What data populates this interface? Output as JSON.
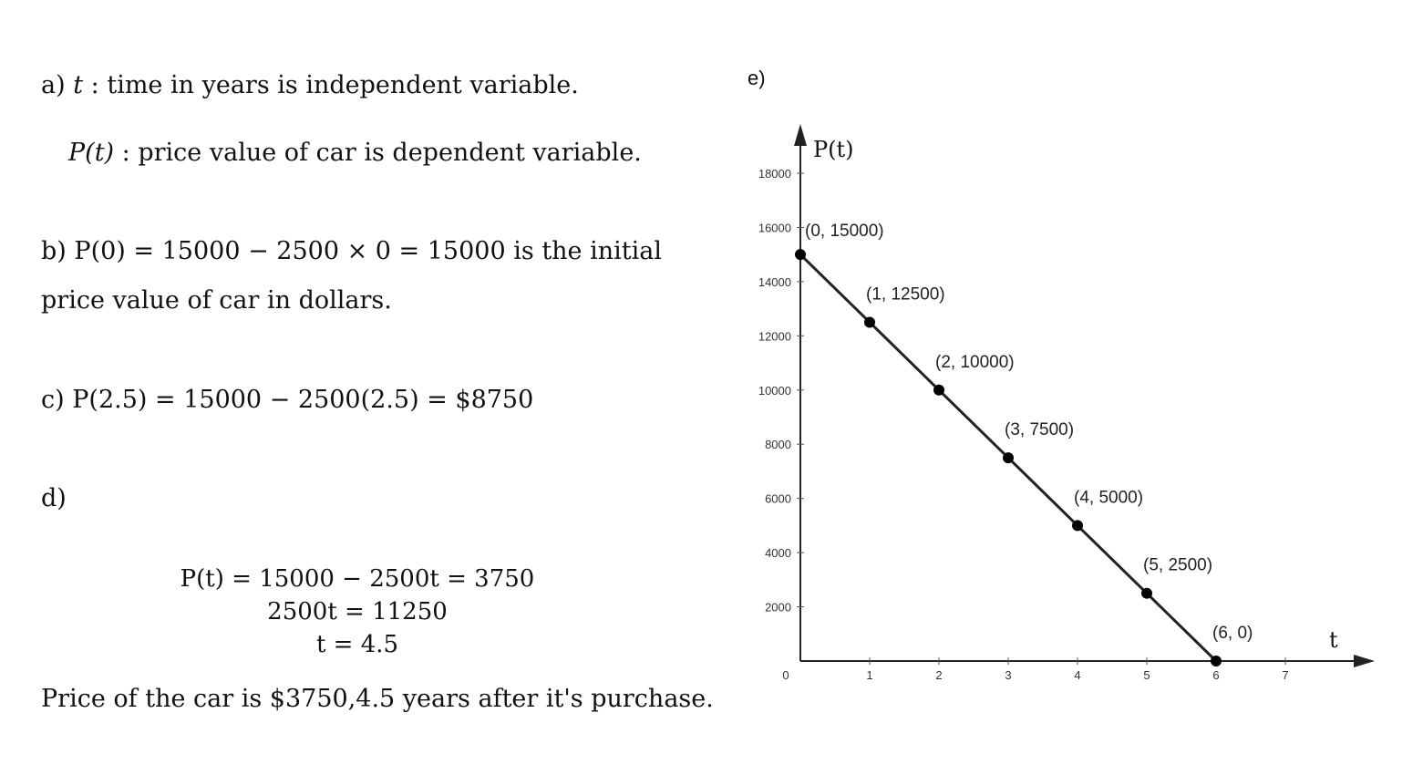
{
  "text": {
    "a_line1": {
      "prefix": "a) ",
      "var": "t",
      "rest": " : time in years is independent variable."
    },
    "a_line2": {
      "func": "P(t)",
      "rest": " : price value of car is dependent variable."
    },
    "b_line1": {
      "prefix": "b) ",
      "eq": "P(0) = 15000 − 2500 × 0 = 15000",
      "rest": " is the initial"
    },
    "b_line2": "price value of car in dollars.",
    "c_line": {
      "prefix": "c) ",
      "eq": "P(2.5) = 15000 − 2500(2.5) = $8750"
    },
    "d_label": "d)",
    "d_eq1": "P(t) = 15000 − 2500t = 3750",
    "d_eq2": "2500t = 11250",
    "d_eq3": "t = 4.5",
    "conclusion": "Price of the car is $3750,4.5 years after it's purchase."
  },
  "chart_data": {
    "type": "line",
    "part_label": "e)",
    "xlabel": "t",
    "ylabel": "P(t)",
    "xlim": [
      0,
      7
    ],
    "ylim": [
      0,
      18000
    ],
    "x_ticks": [
      "0",
      "1",
      "2",
      "3",
      "4",
      "5",
      "6",
      "7"
    ],
    "y_ticks": [
      "2000",
      "4000",
      "6000",
      "8000",
      "10000",
      "12000",
      "14000",
      "16000",
      "18000"
    ],
    "points": [
      {
        "x": 0,
        "y": 15000,
        "label": "(0, 15000)"
      },
      {
        "x": 1,
        "y": 12500,
        "label": "(1, 12500)"
      },
      {
        "x": 2,
        "y": 10000,
        "label": "(2, 10000)"
      },
      {
        "x": 3,
        "y": 7500,
        "label": "(3, 7500)"
      },
      {
        "x": 4,
        "y": 5000,
        "label": "(4, 5000)"
      },
      {
        "x": 5,
        "y": 2500,
        "label": "(5, 2500)"
      },
      {
        "x": 6,
        "y": 0,
        "label": "(6, 0)"
      }
    ],
    "grid": false,
    "line_color": "#222222"
  }
}
